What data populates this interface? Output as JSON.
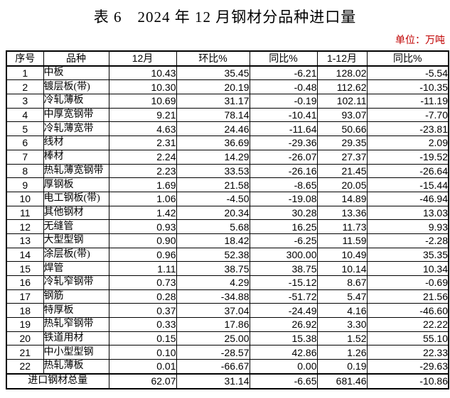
{
  "title": "表 6　2024 年 12 月钢材分品种进口量",
  "unit_label": "单位：万吨",
  "colors": {
    "background": "#ffffff",
    "text": "#000000",
    "border": "#000000",
    "unit_text": "#c00000"
  },
  "table": {
    "headers": [
      "序号",
      "品种",
      "12月",
      "环比%",
      "同比%",
      "1-12月",
      "同比%"
    ],
    "rows": [
      [
        "1",
        "中板",
        "10.43",
        "35.45",
        "-6.21",
        "128.02",
        "-5.54"
      ],
      [
        "2",
        "镀层板(带)",
        "10.30",
        "20.19",
        "-0.48",
        "112.62",
        "-10.35"
      ],
      [
        "3",
        "冷轧薄板",
        "10.69",
        "31.17",
        "-0.19",
        "102.11",
        "-11.19"
      ],
      [
        "4",
        "中厚宽钢带",
        "9.21",
        "78.14",
        "-10.41",
        "93.07",
        "-7.70"
      ],
      [
        "5",
        "冷轧薄宽带",
        "4.63",
        "24.46",
        "-11.64",
        "50.66",
        "-23.81"
      ],
      [
        "6",
        "线材",
        "2.31",
        "36.69",
        "-29.36",
        "29.35",
        "2.09"
      ],
      [
        "7",
        "棒材",
        "2.24",
        "14.29",
        "-26.07",
        "27.37",
        "-19.52"
      ],
      [
        "8",
        "热轧薄宽钢带",
        "2.23",
        "33.53",
        "-26.16",
        "21.45",
        "-26.64"
      ],
      [
        "9",
        "厚钢板",
        "1.69",
        "21.58",
        "-8.65",
        "20.05",
        "-15.44"
      ],
      [
        "10",
        "电工钢板(带)",
        "1.06",
        "-4.50",
        "-19.08",
        "14.89",
        "-46.94"
      ],
      [
        "11",
        "其他钢材",
        "1.42",
        "20.34",
        "30.28",
        "13.36",
        "13.03"
      ],
      [
        "12",
        "无缝管",
        "0.93",
        "5.68",
        "16.25",
        "11.73",
        "9.93"
      ],
      [
        "13",
        "大型型钢",
        "0.90",
        "18.42",
        "-6.25",
        "11.59",
        "-2.28"
      ],
      [
        "14",
        "涂层板(带)",
        "0.96",
        "52.38",
        "300.00",
        "10.49",
        "35.35"
      ],
      [
        "15",
        "焊管",
        "1.11",
        "38.75",
        "38.75",
        "10.14",
        "10.34"
      ],
      [
        "16",
        "冷轧窄钢带",
        "0.73",
        "4.29",
        "-15.12",
        "8.67",
        "-0.69"
      ],
      [
        "17",
        "钢筋",
        "0.28",
        "-34.88",
        "-51.72",
        "5.47",
        "21.56"
      ],
      [
        "18",
        "特厚板",
        "0.37",
        "37.04",
        "-24.49",
        "4.16",
        "-46.60"
      ],
      [
        "19",
        "热轧窄钢带",
        "0.33",
        "17.86",
        "26.92",
        "3.30",
        "22.22"
      ],
      [
        "20",
        "铁道用材",
        "0.15",
        "25.00",
        "15.38",
        "1.52",
        "55.10"
      ],
      [
        "21",
        "中小型型钢",
        "0.10",
        "-28.57",
        "42.86",
        "1.26",
        "22.33"
      ],
      [
        "22",
        "热轧薄板",
        "0.01",
        "-66.67",
        "0.00",
        "0.19",
        "-29.63"
      ]
    ],
    "total_row": {
      "label": "进口钢材总量",
      "values": [
        "62.07",
        "31.14",
        "-6.65",
        "681.46",
        "-10.86"
      ]
    }
  }
}
